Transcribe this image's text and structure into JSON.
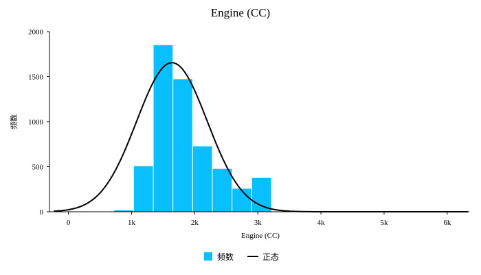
{
  "colors": {
    "bar": "#0ABFFF",
    "bar_edge": "#ffffff",
    "curve": "#000000",
    "axis": "#000000"
  },
  "chart_data": {
    "type": "bar",
    "title": "Engine (CC)",
    "xlabel": "Engine (CC)",
    "ylabel": "频数",
    "xlim": [
      -300,
      6350
    ],
    "ylim": [
      0,
      2000
    ],
    "x_ticks": [
      {
        "value": 0,
        "label": "0"
      },
      {
        "value": 1000,
        "label": "1k"
      },
      {
        "value": 2000,
        "label": "2k"
      },
      {
        "value": 3000,
        "label": "3k"
      },
      {
        "value": 4000,
        "label": "4k"
      },
      {
        "value": 5000,
        "label": "5k"
      },
      {
        "value": 6000,
        "label": "6k"
      }
    ],
    "y_ticks": [
      {
        "value": 0,
        "label": "0"
      },
      {
        "value": 500,
        "label": "500"
      },
      {
        "value": 1000,
        "label": "1000"
      },
      {
        "value": 1500,
        "label": "1500"
      },
      {
        "value": 2000,
        "label": "2000"
      }
    ],
    "bins": [
      {
        "x0": 720,
        "x1": 1032,
        "value": 20
      },
      {
        "x0": 1032,
        "x1": 1344,
        "value": 510
      },
      {
        "x0": 1344,
        "x1": 1656,
        "value": 1855
      },
      {
        "x0": 1656,
        "x1": 1968,
        "value": 1475
      },
      {
        "x0": 1968,
        "x1": 2280,
        "value": 730
      },
      {
        "x0": 2280,
        "x1": 2592,
        "value": 480
      },
      {
        "x0": 2592,
        "x1": 2904,
        "value": 260
      },
      {
        "x0": 2904,
        "x1": 3216,
        "value": 380
      },
      {
        "x0": 3216,
        "x1": 3528,
        "value": 8
      },
      {
        "x0": 3528,
        "x1": 3840,
        "value": 4
      },
      {
        "x0": 3840,
        "x1": 4152,
        "value": 3
      },
      {
        "x0": 4152,
        "x1": 4464,
        "value": 2
      },
      {
        "x0": 4464,
        "x1": 4776,
        "value": 2
      },
      {
        "x0": 4776,
        "x1": 5088,
        "value": 1
      },
      {
        "x0": 5088,
        "x1": 5400,
        "value": 1
      },
      {
        "x0": 5400,
        "x1": 5712,
        "value": 1
      },
      {
        "x0": 5712,
        "x1": 6024,
        "value": 1
      },
      {
        "x0": 6024,
        "x1": 6336,
        "value": 1
      }
    ],
    "normal_curve": {
      "mean": 1640,
      "std": 560,
      "peak": 1655,
      "x_range": [
        -230,
        6330
      ]
    },
    "legend": {
      "position": "bottom-center",
      "items": [
        {
          "label": "频数",
          "kind": "bar"
        },
        {
          "label": "正态",
          "kind": "line"
        }
      ]
    },
    "grid": false
  }
}
